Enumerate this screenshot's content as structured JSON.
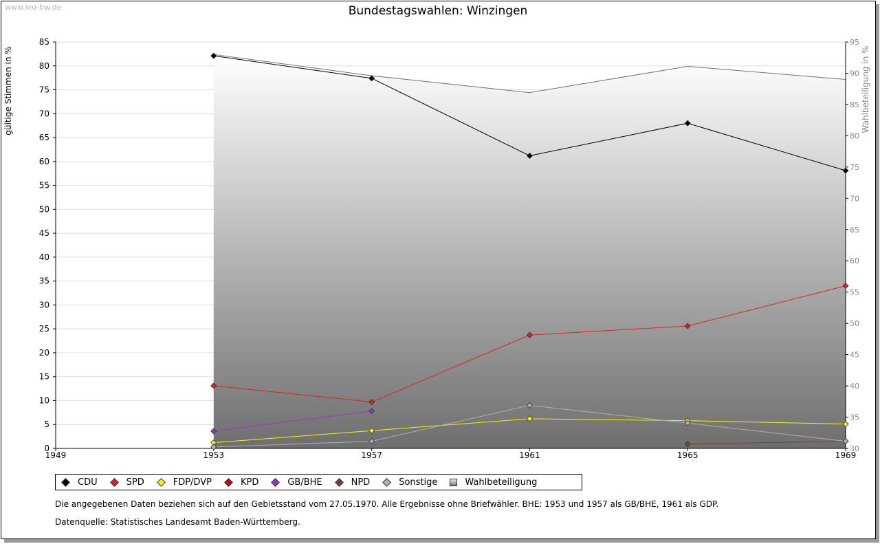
{
  "watermark": "www.leo-bw.de",
  "chart_data": {
    "type": "line",
    "title": "Bundestagswahlen: Winzingen",
    "ylabel": "gültige Stimmen in %",
    "y2label": "Wahlbeteiligung in %",
    "xlim": [
      1949,
      1969
    ],
    "ylim": [
      0,
      85
    ],
    "y2lim": [
      30,
      95
    ],
    "x_ticks": [
      1949,
      1953,
      1957,
      1961,
      1965,
      1969
    ],
    "y_ticks": [
      0,
      5,
      10,
      15,
      20,
      25,
      30,
      35,
      40,
      45,
      50,
      55,
      60,
      65,
      70,
      75,
      80,
      85
    ],
    "y2_ticks": [
      30,
      35,
      40,
      45,
      50,
      55,
      60,
      65,
      70,
      75,
      80,
      85,
      90,
      95
    ],
    "turnout": {
      "name": "Wahlbeteiligung",
      "x": [
        1953,
        1957,
        1961,
        1965,
        1969
      ],
      "values": [
        93.0,
        89.6,
        86.9,
        91.1,
        89.0
      ]
    },
    "series": [
      {
        "name": "CDU",
        "color": "#000000",
        "x": [
          1953,
          1957,
          1961,
          1965,
          1969
        ],
        "values": [
          82.1,
          77.4,
          61.2,
          68.0,
          58.1
        ]
      },
      {
        "name": "SPD",
        "color": "#e02020",
        "x": [
          1953,
          1957,
          1961,
          1965,
          1969
        ],
        "values": [
          13.1,
          9.7,
          23.7,
          25.6,
          34.0
        ]
      },
      {
        "name": "FDP/DVP",
        "color": "#f5f500",
        "x": [
          1953,
          1957,
          1961,
          1965,
          1969
        ],
        "values": [
          1.2,
          3.7,
          6.2,
          5.8,
          5.1
        ]
      },
      {
        "name": "KPD",
        "color": "#cc0000",
        "x": [],
        "values": []
      },
      {
        "name": "GB/BHE",
        "color": "#9933cc",
        "x": [
          1953,
          1957
        ],
        "values": [
          3.6,
          7.8
        ]
      },
      {
        "name": "NPD",
        "color": "#6b4a3a",
        "x": [
          1965,
          1969
        ],
        "values": [
          0.9,
          1.5
        ]
      },
      {
        "name": "Sonstige",
        "color": "#b0b0b0",
        "x": [
          1953,
          1957,
          1961,
          1965,
          1969
        ],
        "values": [
          0.3,
          1.5,
          9.0,
          5.3,
          1.5
        ]
      }
    ]
  },
  "legend": {
    "items": [
      {
        "label": "CDU",
        "color": "#000000"
      },
      {
        "label": "SPD",
        "color": "#e02020"
      },
      {
        "label": "FDP/DVP",
        "color": "#f5f500"
      },
      {
        "label": "KPD",
        "color": "#cc0000"
      },
      {
        "label": "GB/BHE",
        "color": "#9933cc"
      },
      {
        "label": "NPD",
        "color": "#6b4a3a"
      },
      {
        "label": "Sonstige",
        "color": "#b0b0b0"
      }
    ],
    "turnout_label": "Wahlbeteiligung"
  },
  "notes": {
    "line1": "Die angegebenen Daten beziehen sich auf den Gebietsstand vom 27.05.1970. Alle Ergebnisse ohne Briefwähler. BHE: 1953 und 1957 als GB/BHE, 1961 als GDP.",
    "line2": "Datenquelle: Statistisches Landesamt Baden-Württemberg."
  }
}
